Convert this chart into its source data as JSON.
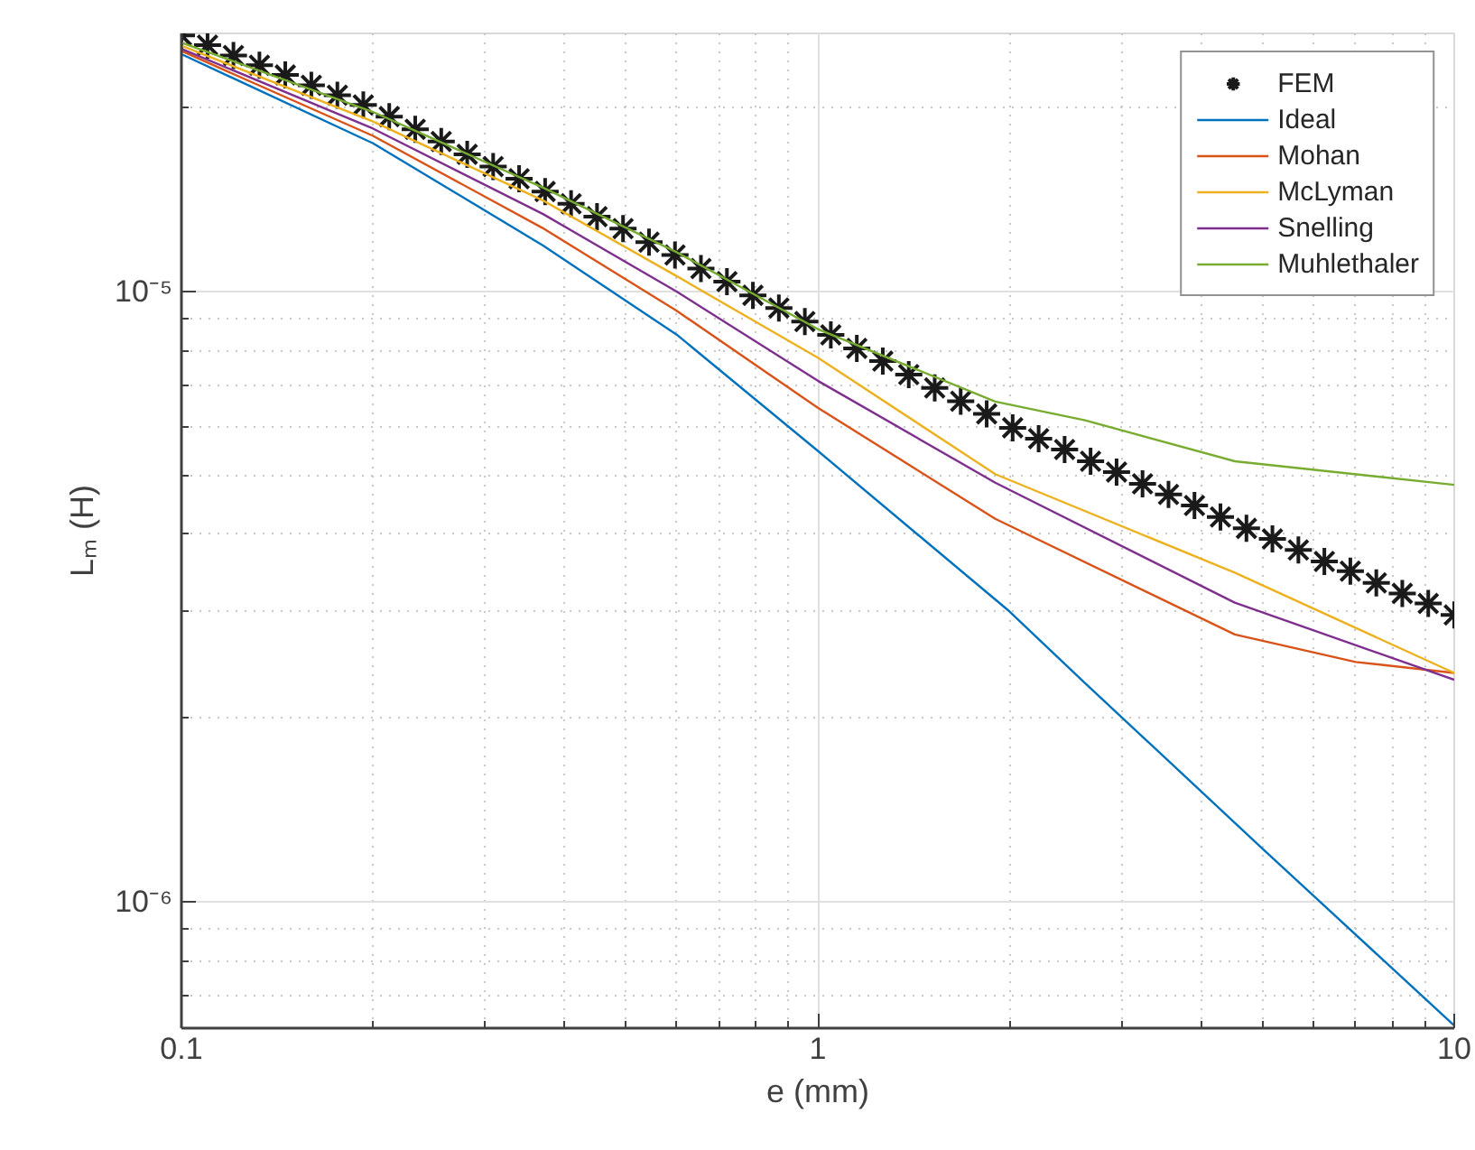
{
  "chart_data": {
    "type": "line",
    "xlabel": "e (mm)",
    "ylabel": "Lₘ (H)",
    "log": "xy",
    "grid": true,
    "legend": "top right",
    "xlim": [
      0.1,
      10
    ],
    "ylim": [
      6.2e-07,
      2.65e-05
    ],
    "xticks": [
      0.1,
      1,
      10
    ],
    "yticks": [
      {
        "value": 1e-06,
        "label": "10⁻⁶"
      },
      {
        "value": 1e-05,
        "label": "10⁻⁵"
      }
    ],
    "series": [
      {
        "name": "FEM",
        "type": "scatter",
        "marker": "cross",
        "color": "#1a1a1a",
        "x": [
          0.1,
          0.1099,
          0.1207,
          0.1326,
          0.1456,
          0.16,
          0.1758,
          0.1931,
          0.2121,
          0.233,
          0.256,
          0.2812,
          0.3089,
          0.3393,
          0.3728,
          0.4095,
          0.4498,
          0.4942,
          0.5429,
          0.5964,
          0.6551,
          0.7197,
          0.7906,
          0.8685,
          0.9541,
          1.0481,
          1.1514,
          1.2649,
          1.3895,
          1.5264,
          1.6768,
          1.8421,
          2.0236,
          2.223,
          2.4421,
          2.6827,
          2.9471,
          3.2375,
          3.5565,
          3.9069,
          4.2919,
          4.7149,
          5.1795,
          5.6899,
          6.2506,
          6.8665,
          7.5431,
          8.2864,
          9.103,
          10
        ],
        "values": [
          2.63e-05,
          2.535e-05,
          2.438e-05,
          2.35e-05,
          2.265e-05,
          2.178e-05,
          2.099e-05,
          2.023e-05,
          1.936e-05,
          1.845e-05,
          1.762e-05,
          1.679e-05,
          1.603e-05,
          1.531e-05,
          1.459e-05,
          1.393e-05,
          1.327e-05,
          1.268e-05,
          1.205e-05,
          1.148e-05,
          1.091e-05,
          1.038e-05,
          9.86e-06,
          9.4e-06,
          8.93e-06,
          8.49e-06,
          8.07e-06,
          7.69e-06,
          7.31e-06,
          6.95e-06,
          6.61e-06,
          6.3e-06,
          5.98e-06,
          5.74e-06,
          5.51e-06,
          5.27e-06,
          5.06e-06,
          4.84e-06,
          4.65e-06,
          4.46e-06,
          4.27e-06,
          4.09e-06,
          3.93e-06,
          3.77e-06,
          3.61e-06,
          3.48e-06,
          3.33e-06,
          3.2e-06,
          3.08e-06,
          2.95e-06
        ]
      },
      {
        "name": "Ideal",
        "color": "#0072bd",
        "x": [
          0.1,
          0.2,
          0.37,
          0.6,
          1,
          2,
          2.63,
          5,
          10
        ],
        "values": [
          2.45e-05,
          1.75e-05,
          1.19e-05,
          8.5e-06,
          5.48e-06,
          2.99e-06,
          2.28e-06,
          1.22e-06,
          6.26e-07
        ]
      },
      {
        "name": "Mohan",
        "color": "#d95319",
        "x": [
          0.1,
          0.2,
          0.37,
          0.6,
          1,
          1.9,
          4.52,
          7,
          10
        ],
        "values": [
          2.48e-05,
          1.8e-05,
          1.27e-05,
          9.3e-06,
          6.45e-06,
          4.24e-06,
          2.74e-06,
          2.47e-06,
          2.37e-06
        ]
      },
      {
        "name": "McLyman",
        "color": "#edb120",
        "x": [
          0.1,
          0.2,
          0.37,
          0.6,
          1,
          1.9,
          4.52,
          10
        ],
        "values": [
          2.53e-05,
          1.9e-05,
          1.41e-05,
          1.06e-05,
          7.79e-06,
          5.02e-06,
          3.46e-06,
          2.37e-06
        ]
      },
      {
        "name": "Snelling",
        "color": "#7e2f8e",
        "x": [
          0.1,
          0.2,
          0.37,
          0.6,
          1,
          1.9,
          4.52,
          10
        ],
        "values": [
          2.5e-05,
          1.85e-05,
          1.34e-05,
          1e-05,
          7.14e-06,
          4.86e-06,
          3.09e-06,
          2.31e-06
        ]
      },
      {
        "name": "Muhlethaler",
        "color": "#77ac30",
        "x": [
          0.1,
          0.2,
          0.37,
          0.6,
          1,
          1.9,
          2.63,
          4.52,
          10
        ],
        "values": [
          2.56e-05,
          1.97e-05,
          1.48e-05,
          1.16e-05,
          8.68e-06,
          6.6e-06,
          6.15e-06,
          5.27e-06,
          4.82e-06
        ]
      }
    ]
  }
}
